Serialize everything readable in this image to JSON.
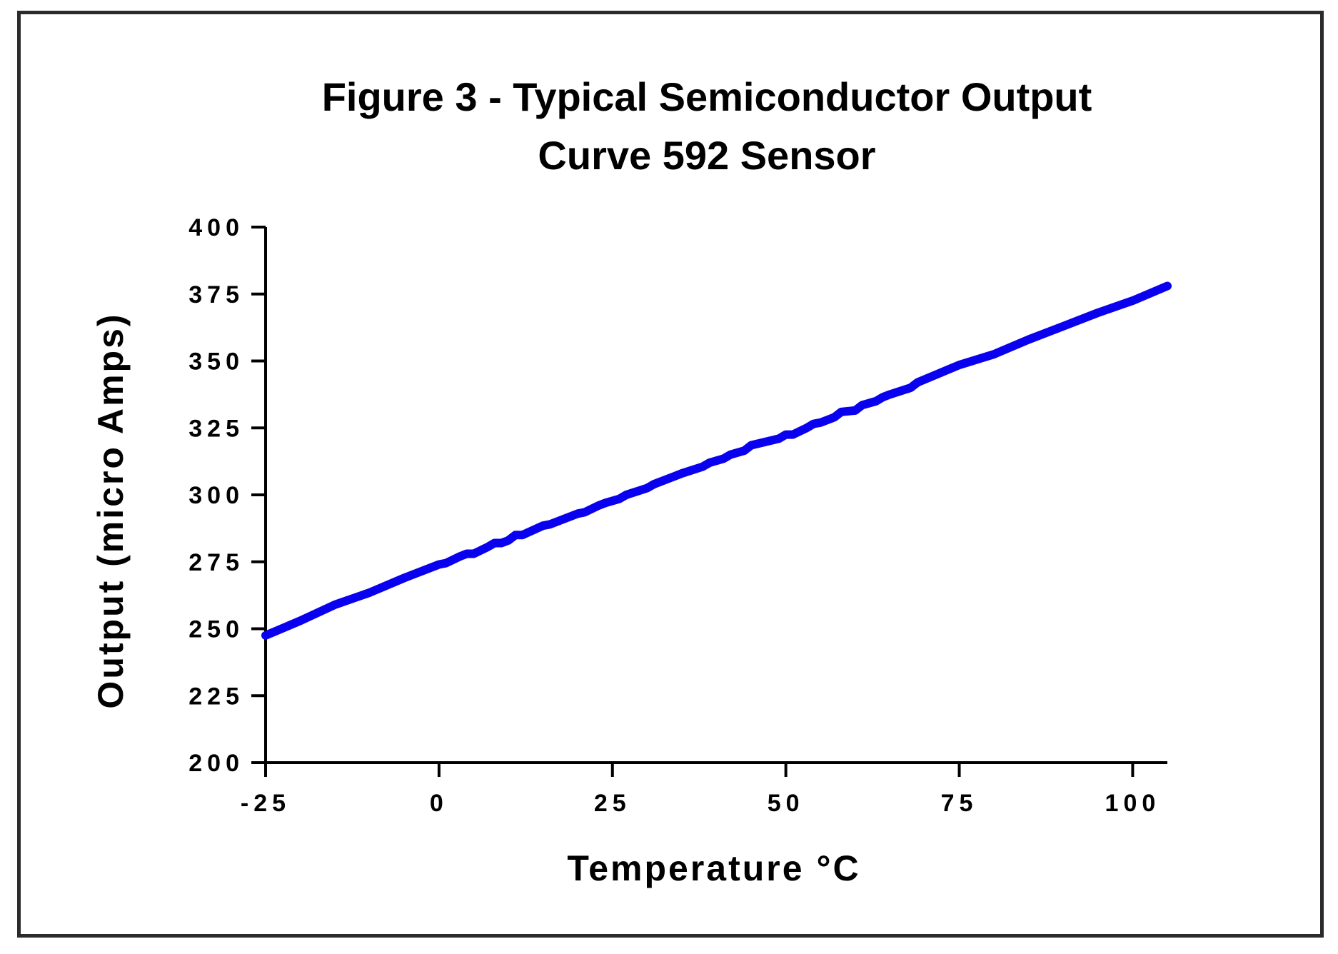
{
  "chart_data": {
    "type": "line",
    "title_lines": [
      "Figure 3 - Typical Semiconductor Output",
      "Curve 592 Sensor"
    ],
    "xlabel": "Temperature °C",
    "ylabel": "Output  (micro Amps)",
    "xlim": [
      -25,
      105
    ],
    "ylim": [
      200,
      400
    ],
    "xticks": [
      -25,
      0,
      25,
      50,
      75,
      100
    ],
    "yticks": [
      200,
      225,
      250,
      275,
      300,
      325,
      350,
      375,
      400
    ],
    "xtick_labels": [
      "-25",
      "0",
      "25",
      "50",
      "75",
      "100"
    ],
    "ytick_labels": [
      "200",
      "225",
      "250",
      "275",
      "300",
      "325",
      "350",
      "375",
      "400"
    ],
    "grid": false,
    "series": [
      {
        "color": "#0a00f0",
        "x": [
          -25,
          -20,
          -15,
          -10,
          -5,
          0,
          1,
          3,
          4,
          5,
          7,
          8,
          9,
          10,
          11,
          12,
          15,
          16,
          20,
          21,
          23,
          24,
          26,
          27,
          30,
          31,
          34,
          35,
          38,
          39,
          41,
          42,
          44,
          45,
          49,
          50,
          51,
          53,
          54,
          55,
          57,
          58,
          60,
          61,
          63,
          64,
          65,
          68,
          69,
          75,
          80,
          85,
          90,
          95,
          100,
          105
        ],
        "y": [
          247.5,
          253,
          259,
          263.5,
          269,
          274,
          274.5,
          277,
          278,
          278,
          280.5,
          282,
          282,
          283,
          285,
          285,
          288.5,
          289,
          293,
          293.5,
          296,
          297,
          298.5,
          300,
          302.5,
          304,
          307,
          308,
          310.5,
          312,
          313.5,
          315,
          316.5,
          318.5,
          321,
          322.5,
          322.5,
          325,
          326.5,
          327,
          329,
          331,
          331.5,
          333.5,
          335,
          336.5,
          337.5,
          340,
          342,
          348.5,
          352.5,
          358,
          363,
          368,
          372.5,
          378
        ]
      }
    ]
  }
}
